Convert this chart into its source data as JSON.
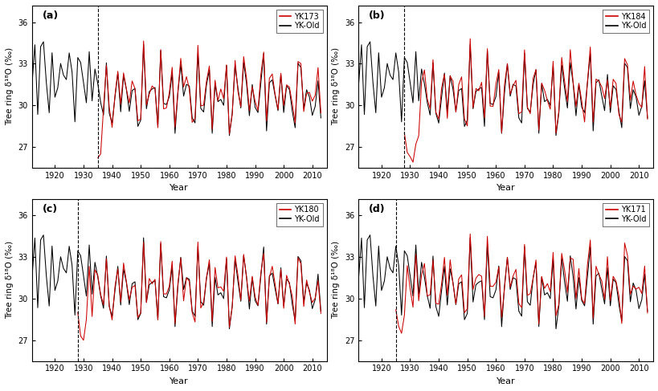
{
  "panels": [
    {
      "label": "a",
      "young_name": "YK173",
      "dashed_x": 1935,
      "young_start": 1935,
      "young_end": 2013
    },
    {
      "label": "b",
      "young_name": "YK184",
      "dashed_x": 1928,
      "young_start": 1928,
      "young_end": 2013
    },
    {
      "label": "c",
      "young_name": "YK180",
      "dashed_x": 1928,
      "young_start": 1928,
      "young_end": 2013
    },
    {
      "label": "d",
      "young_name": "YK171",
      "dashed_x": 1925,
      "young_start": 1925,
      "young_end": 2013
    }
  ],
  "old_name": "YK-Old",
  "old_color": "#000000",
  "young_color": "#cc0000",
  "ylim": [
    25.5,
    37.2
  ],
  "yticks": [
    27,
    30,
    33,
    36
  ],
  "xlim": [
    1912,
    2015
  ],
  "xticks": [
    1920,
    1930,
    1940,
    1950,
    1960,
    1970,
    1980,
    1990,
    2000,
    2010
  ],
  "ylabel": "Tree ring δ¹⁸O (‰)",
  "xlabel": "Year",
  "old_start": 1912,
  "old_end": 2013,
  "linewidth": 0.75,
  "background": "white",
  "fig_width": 8.2,
  "fig_height": 4.87,
  "dpi": 100
}
